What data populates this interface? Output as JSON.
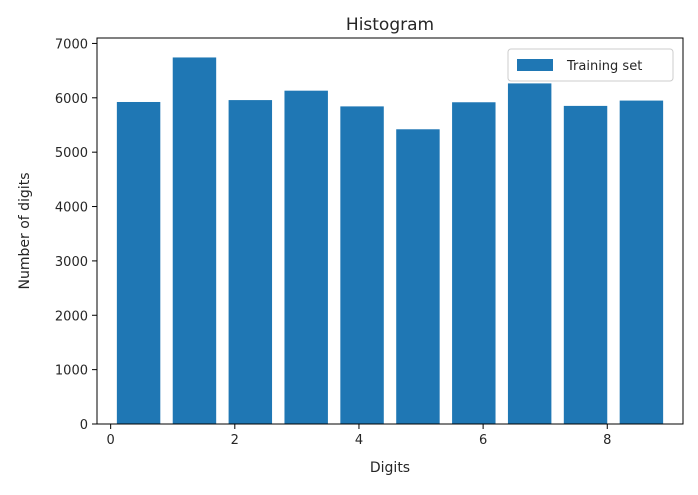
{
  "chart_data": {
    "type": "bar",
    "title": "Histogram",
    "xlabel": "Digits",
    "ylabel": "Number of digits",
    "x": [
      0.45,
      1.35,
      2.25,
      3.15,
      4.05,
      4.95,
      5.85,
      6.75,
      7.65,
      8.55
    ],
    "values": [
      5923,
      6742,
      5958,
      6131,
      5842,
      5421,
      5918,
      6265,
      5851,
      5949
    ],
    "bar_width": 0.7,
    "xlim": [
      -0.22,
      9.22
    ],
    "ylim": [
      0,
      7100
    ],
    "xticks": [
      0,
      2,
      4,
      6,
      8
    ],
    "yticks": [
      0,
      1000,
      2000,
      3000,
      4000,
      5000,
      6000,
      7000
    ],
    "series": [
      {
        "name": "Training set",
        "color": "#1f77b4"
      }
    ],
    "legend": "top-right",
    "grid": false
  }
}
